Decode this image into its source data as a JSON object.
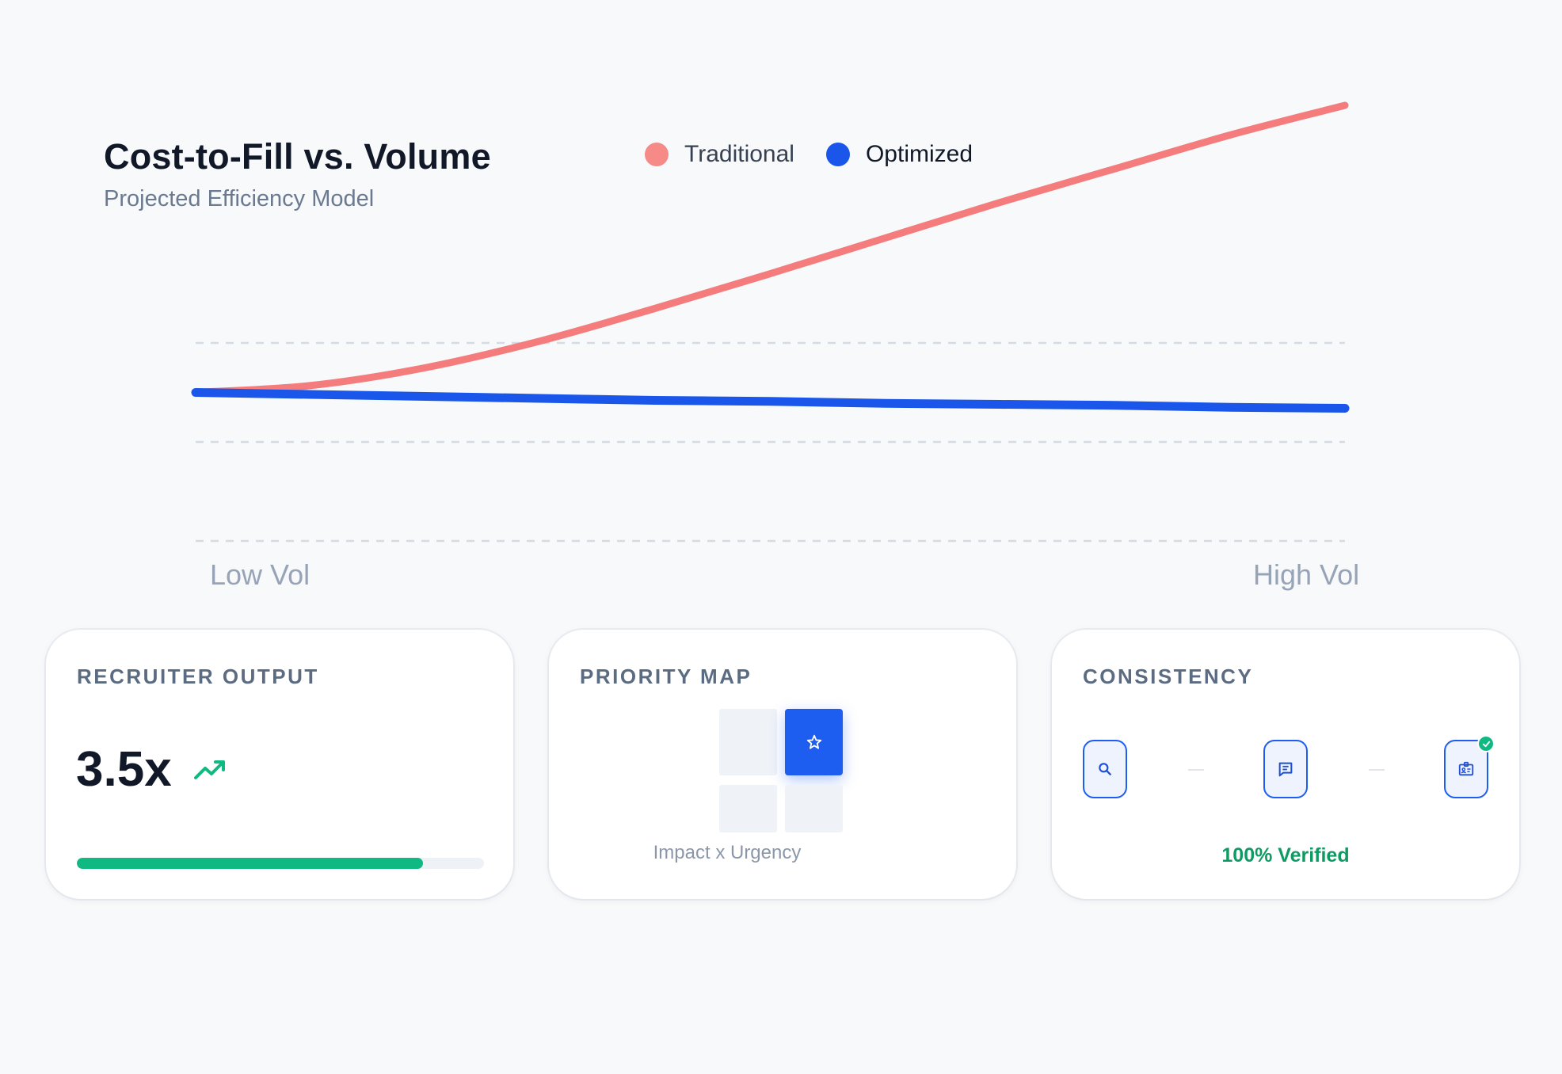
{
  "chart_data": {
    "type": "line",
    "title": "Cost-to-Fill vs. Volume",
    "subtitle": "Projected Efficiency Model",
    "xlabel": "",
    "ylabel": "",
    "x_tick_labels": [
      "Low Vol",
      "High Vol"
    ],
    "x": [
      0,
      0.1,
      0.2,
      0.3,
      0.4,
      0.5,
      0.6,
      0.7,
      0.8,
      0.9,
      1.0
    ],
    "ylim": [
      0,
      4
    ],
    "gridlines": [
      0,
      1,
      2
    ],
    "grid": true,
    "legend_position": "top",
    "series": [
      {
        "name": "Traditional",
        "color": "#f47c7c",
        "values": [
          1.5,
          1.57,
          1.75,
          2.02,
          2.35,
          2.7,
          3.06,
          3.42,
          3.76,
          4.1,
          4.4
        ]
      },
      {
        "name": "Optimized",
        "color": "#1a56ea",
        "values": [
          1.5,
          1.48,
          1.46,
          1.44,
          1.42,
          1.41,
          1.39,
          1.38,
          1.37,
          1.35,
          1.34
        ]
      }
    ]
  },
  "cards": {
    "recruiter_output": {
      "title": "RECRUITER OUTPUT",
      "metric": "3.5x",
      "trend_icon": "trending-up-icon",
      "progress": 0.85,
      "progress_color": "#10b981"
    },
    "priority_map": {
      "title": "PRIORITY MAP",
      "highlight_icon": "star-icon",
      "caption": "Impact x Urgency"
    },
    "consistency": {
      "title": "CONSISTENCY",
      "steps": [
        "search-icon",
        "message-icon",
        "id-card-icon"
      ],
      "status": "100% Verified",
      "status_color": "#0f9a63"
    }
  }
}
